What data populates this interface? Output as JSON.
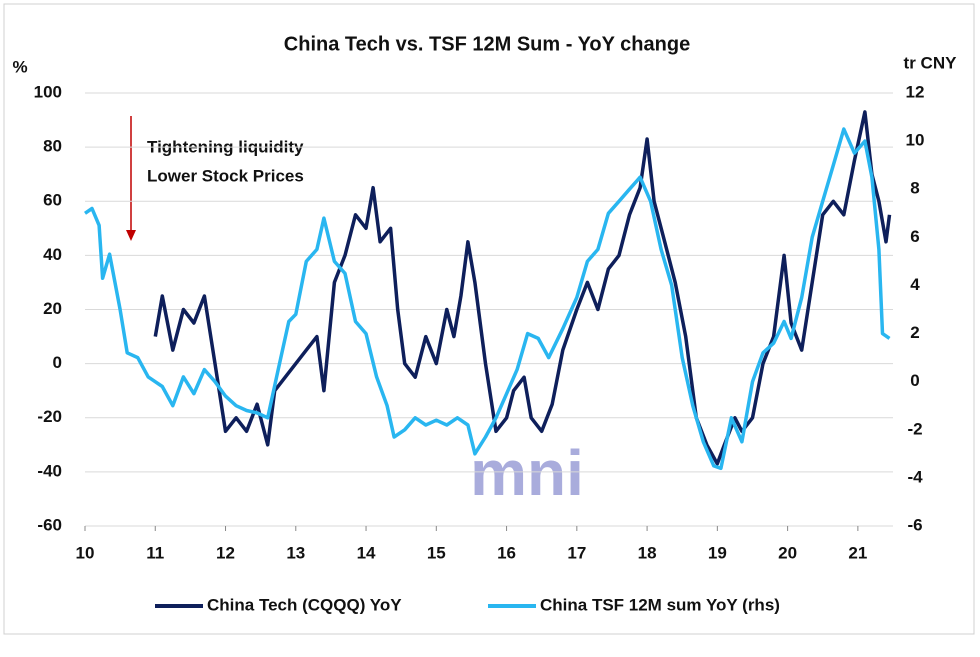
{
  "chart_data": {
    "type": "line",
    "title": "China Tech vs. TSF 12M Sum - YoY change",
    "y_label": "%",
    "y2_label": "tr CNY",
    "annotation": [
      "Tightening liquidity",
      "Lower Stock Prices"
    ],
    "watermark": "mni",
    "xlim": [
      10,
      21.5
    ],
    "xticks": [
      10,
      11,
      12,
      13,
      14,
      15,
      16,
      17,
      18,
      19,
      20,
      21
    ],
    "ylim": [
      -60,
      100
    ],
    "yticks": [
      -60,
      -40,
      -20,
      0,
      20,
      40,
      60,
      80,
      100
    ],
    "y2lim": [
      -6,
      12
    ],
    "y2ticks": [
      -6,
      -4,
      -2,
      0,
      2,
      4,
      6,
      8,
      10,
      12
    ],
    "grid": true,
    "legend": "bottom",
    "series": [
      {
        "name": "China Tech (CQQQ) YoY",
        "color": "#0e1f5b",
        "x": [
          11.0,
          11.1,
          11.25,
          11.4,
          11.55,
          11.7,
          11.85,
          12.0,
          12.15,
          12.3,
          12.45,
          12.6,
          12.7,
          12.85,
          13.0,
          13.15,
          13.3,
          13.4,
          13.55,
          13.7,
          13.85,
          14.0,
          14.1,
          14.2,
          14.35,
          14.45,
          14.55,
          14.7,
          14.85,
          15.0,
          15.15,
          15.25,
          15.35,
          15.45,
          15.55,
          15.7,
          15.85,
          16.0,
          16.1,
          16.25,
          16.35,
          16.5,
          16.65,
          16.8,
          17.0,
          17.15,
          17.3,
          17.45,
          17.6,
          17.75,
          17.9,
          18.0,
          18.1,
          18.25,
          18.4,
          18.55,
          18.7,
          18.85,
          19.0,
          19.1,
          19.25,
          19.35,
          19.5,
          19.65,
          19.8,
          19.95,
          20.05,
          20.2,
          20.35,
          20.5,
          20.65,
          20.8,
          20.95,
          21.1,
          21.2,
          21.3,
          21.4,
          21.45
        ],
        "values": [
          10,
          25,
          5,
          20,
          15,
          25,
          0,
          -25,
          -20,
          -25,
          -15,
          -30,
          -10,
          -5,
          0,
          5,
          10,
          -10,
          30,
          40,
          55,
          50,
          65,
          45,
          50,
          20,
          0,
          -5,
          10,
          0,
          20,
          10,
          25,
          45,
          30,
          0,
          -25,
          -20,
          -10,
          -5,
          -20,
          -25,
          -15,
          5,
          20,
          30,
          20,
          35,
          40,
          55,
          65,
          83,
          60,
          45,
          30,
          10,
          -20,
          -30,
          -37,
          -30,
          -20,
          -25,
          -20,
          0,
          10,
          40,
          15,
          5,
          30,
          55,
          60,
          55,
          75,
          93,
          70,
          60,
          45,
          55
        ]
      },
      {
        "name": "China TSF 12M sum YoY (rhs)",
        "color": "#29b6f0",
        "axis": "y2",
        "x": [
          10.0,
          10.1,
          10.2,
          10.25,
          10.35,
          10.5,
          10.6,
          10.75,
          10.9,
          11.1,
          11.25,
          11.4,
          11.55,
          11.7,
          11.85,
          12.0,
          12.15,
          12.3,
          12.45,
          12.6,
          12.75,
          12.9,
          13.0,
          13.15,
          13.3,
          13.4,
          13.55,
          13.7,
          13.85,
          14.0,
          14.15,
          14.3,
          14.4,
          14.55,
          14.7,
          14.85,
          15.0,
          15.15,
          15.3,
          15.45,
          15.55,
          15.7,
          15.85,
          16.0,
          16.15,
          16.3,
          16.45,
          16.6,
          16.8,
          17.0,
          17.15,
          17.3,
          17.45,
          17.6,
          17.75,
          17.9,
          18.05,
          18.2,
          18.35,
          18.5,
          18.65,
          18.8,
          18.95,
          19.05,
          19.2,
          19.35,
          19.5,
          19.65,
          19.8,
          19.95,
          20.05,
          20.2,
          20.35,
          20.5,
          20.65,
          20.8,
          20.95,
          21.1,
          21.2,
          21.3,
          21.35,
          21.45
        ],
        "values": [
          7.0,
          7.2,
          6.5,
          4.3,
          5.3,
          3.0,
          1.2,
          1.0,
          0.2,
          -0.2,
          -1.0,
          0.2,
          -0.5,
          0.5,
          0,
          -0.6,
          -1.0,
          -1.2,
          -1.3,
          -1.5,
          0.5,
          2.5,
          2.8,
          5.0,
          5.5,
          6.8,
          5.0,
          4.5,
          2.5,
          2.0,
          0.2,
          -1.0,
          -2.3,
          -2.0,
          -1.5,
          -1.8,
          -1.6,
          -1.8,
          -1.5,
          -1.8,
          -3.0,
          -2.3,
          -1.5,
          -0.5,
          0.5,
          2.0,
          1.8,
          1.0,
          2.2,
          3.5,
          5.0,
          5.5,
          7.0,
          7.5,
          8.0,
          8.5,
          7.5,
          5.5,
          4.0,
          1.0,
          -1.0,
          -2.5,
          -3.5,
          -3.6,
          -1.5,
          -2.5,
          0,
          1.2,
          1.6,
          2.5,
          1.8,
          3.5,
          6.0,
          7.5,
          9.0,
          10.5,
          9.5,
          10.0,
          8.5,
          5.5,
          2.0,
          1.8
        ]
      }
    ]
  }
}
